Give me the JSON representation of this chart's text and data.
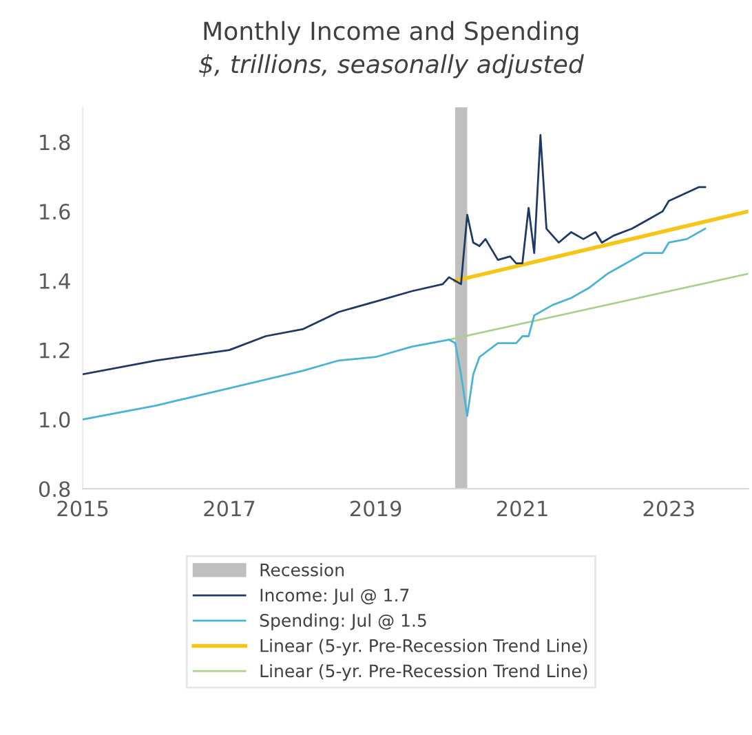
{
  "chart_data": {
    "type": "line",
    "title": "Monthly Income and Spending",
    "subtitle": "$, trillions, seasonally adjusted",
    "xlim": [
      "2015-01",
      "2024-02"
    ],
    "xticks": [
      {
        "value": "2015-01",
        "label": "2015"
      },
      {
        "value": "2017-01",
        "label": "2017"
      },
      {
        "value": "2019-01",
        "label": "2019"
      },
      {
        "value": "2021-01",
        "label": "2021"
      },
      {
        "value": "2023-01",
        "label": "2023"
      }
    ],
    "ylim": [
      0.8,
      1.9
    ],
    "yticks": [
      0.8,
      {
        "value": 1.0,
        "label": "1.0"
      },
      1.2,
      1.4,
      1.6,
      1.8
    ],
    "grid": false,
    "legend": "bottom",
    "bands": [
      {
        "axis": "x",
        "from": "2020-02",
        "to": "2020-04",
        "label": "Recession",
        "color": "#bfbfbf"
      }
    ],
    "series": [
      {
        "name": "Income: Jul @ 1.7",
        "color": "#1f3864",
        "x": [
          "2015-01",
          "2016-01",
          "2017-01",
          "2017-07",
          "2018-01",
          "2018-07",
          "2019-01",
          "2019-07",
          "2019-12",
          "2020-01",
          "2020-03",
          "2020-04",
          "2020-05",
          "2020-06",
          "2020-07",
          "2020-09",
          "2020-11",
          "2020-12",
          "2021-01",
          "2021-02",
          "2021-03",
          "2021-04",
          "2021-05",
          "2021-07",
          "2021-09",
          "2021-11",
          "2022-01",
          "2022-02",
          "2022-04",
          "2022-07",
          "2022-10",
          "2022-12",
          "2023-01",
          "2023-06",
          "2023-07"
        ],
        "values": [
          1.13,
          1.17,
          1.2,
          1.24,
          1.26,
          1.31,
          1.34,
          1.37,
          1.39,
          1.41,
          1.39,
          1.59,
          1.51,
          1.5,
          1.52,
          1.46,
          1.47,
          1.45,
          1.45,
          1.61,
          1.48,
          1.82,
          1.55,
          1.51,
          1.54,
          1.52,
          1.54,
          1.51,
          1.53,
          1.55,
          1.58,
          1.6,
          1.63,
          1.67,
          1.67
        ]
      },
      {
        "name": "Spending: Jul @ 1.5",
        "color": "#4bb3d6",
        "x": [
          "2015-01",
          "2016-01",
          "2017-01",
          "2018-01",
          "2018-07",
          "2019-01",
          "2019-07",
          "2020-01",
          "2020-02",
          "2020-03",
          "2020-04",
          "2020-05",
          "2020-06",
          "2020-09",
          "2020-12",
          "2021-01",
          "2021-02",
          "2021-03",
          "2021-06",
          "2021-09",
          "2021-12",
          "2022-03",
          "2022-06",
          "2022-09",
          "2022-12",
          "2023-01",
          "2023-04",
          "2023-07"
        ],
        "values": [
          1.0,
          1.04,
          1.09,
          1.14,
          1.17,
          1.18,
          1.21,
          1.23,
          1.22,
          1.13,
          1.01,
          1.13,
          1.18,
          1.22,
          1.22,
          1.24,
          1.24,
          1.3,
          1.33,
          1.35,
          1.38,
          1.42,
          1.45,
          1.48,
          1.48,
          1.51,
          1.52,
          1.55
        ]
      },
      {
        "name": "Linear (5-yr. Pre-Recession Trend Line)",
        "color": "#f5c518",
        "x": [
          "2020-02",
          "2024-02"
        ],
        "values": [
          1.4,
          1.6
        ]
      },
      {
        "name": "Linear (5-yr. Pre-Recession Trend Line)",
        "color": "#a9d18e",
        "x": [
          "2020-01",
          "2024-02"
        ],
        "values": [
          1.23,
          1.42
        ]
      }
    ]
  }
}
